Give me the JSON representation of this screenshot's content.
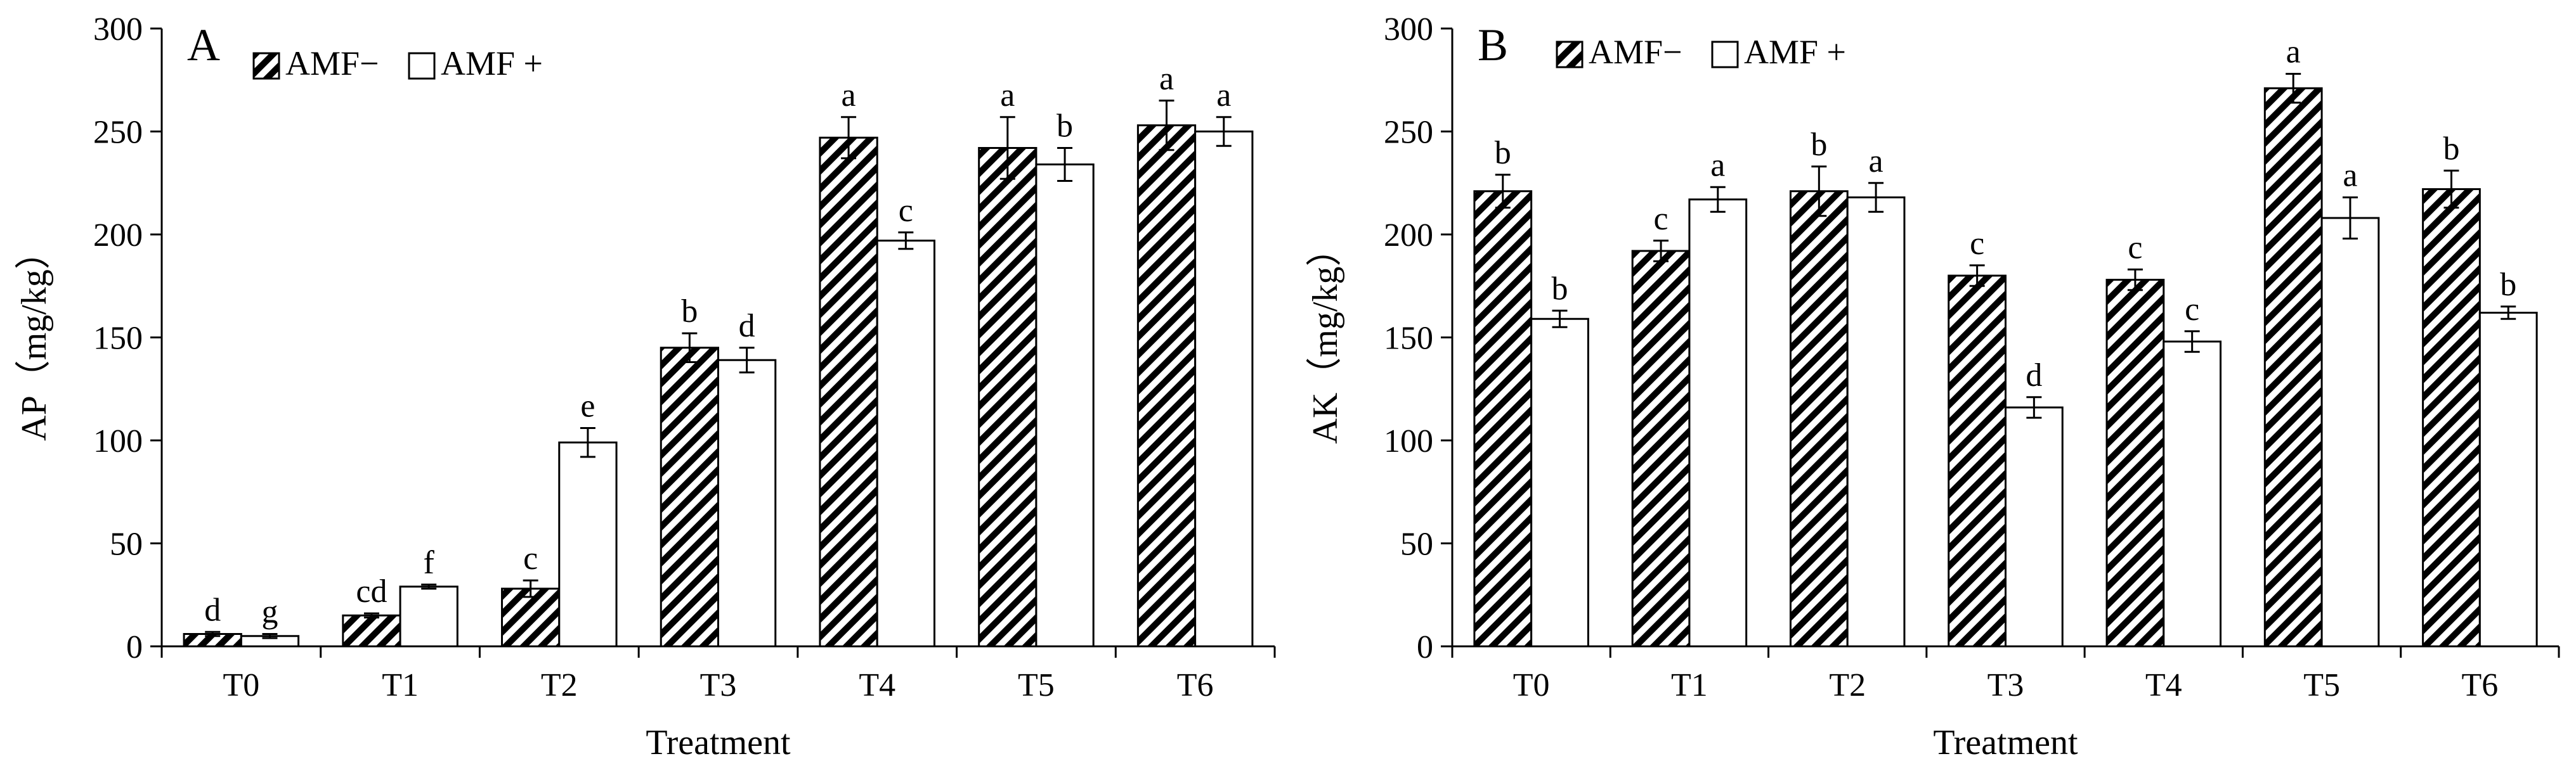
{
  "chart_data": [
    {
      "type": "bar",
      "panel_label": "A",
      "categories": [
        "T0",
        "T1",
        "T2",
        "T3",
        "T4",
        "T5",
        "T6"
      ],
      "series": [
        {
          "name": "AMF−",
          "pattern": "hatched",
          "values": [
            6,
            15,
            28,
            145,
            247,
            242,
            253
          ],
          "errors": [
            1,
            1,
            4,
            7,
            10,
            15,
            12
          ],
          "letters": [
            "d",
            "cd",
            "c",
            "b",
            "a",
            "a",
            "a"
          ]
        },
        {
          "name": "AMF +",
          "pattern": "open",
          "values": [
            5,
            29,
            99,
            139,
            197,
            234,
            250
          ],
          "errors": [
            1,
            1,
            7,
            6,
            4,
            8,
            7
          ],
          "letters": [
            "g",
            "f",
            "e",
            "d",
            "c",
            "b",
            "a"
          ]
        }
      ],
      "xlabel": "Treatment",
      "ylabel": "AP（mg/kg）",
      "ylim": [
        0,
        300
      ],
      "yticks": [
        0,
        50,
        100,
        150,
        200,
        250,
        300
      ],
      "grid": false,
      "legend_position": "top-left"
    },
    {
      "type": "bar",
      "panel_label": "B",
      "categories": [
        "T0",
        "T1",
        "T2",
        "T3",
        "T4",
        "T5",
        "T6"
      ],
      "series": [
        {
          "name": "AMF−",
          "pattern": "hatched",
          "values": [
            221,
            192,
            221,
            180,
            178,
            271,
            222
          ],
          "errors": [
            8,
            5,
            12,
            5,
            5,
            7,
            9
          ],
          "letters": [
            "b",
            "c",
            "b",
            "c",
            "c",
            "a",
            "b"
          ]
        },
        {
          "name": "AMF +",
          "pattern": "open",
          "values": [
            159,
            217,
            218,
            116,
            148,
            208,
            162
          ],
          "errors": [
            4,
            6,
            7,
            5,
            5,
            10,
            3
          ],
          "letters": [
            "b",
            "a",
            "a",
            "d",
            "c",
            "a",
            "b"
          ]
        }
      ],
      "xlabel": "Treatment",
      "ylabel": "AK（mg/kg）",
      "ylim": [
        0,
        300
      ],
      "yticks": [
        0,
        50,
        100,
        150,
        200,
        250,
        300
      ],
      "grid": false,
      "legend_position": "top-left"
    }
  ]
}
